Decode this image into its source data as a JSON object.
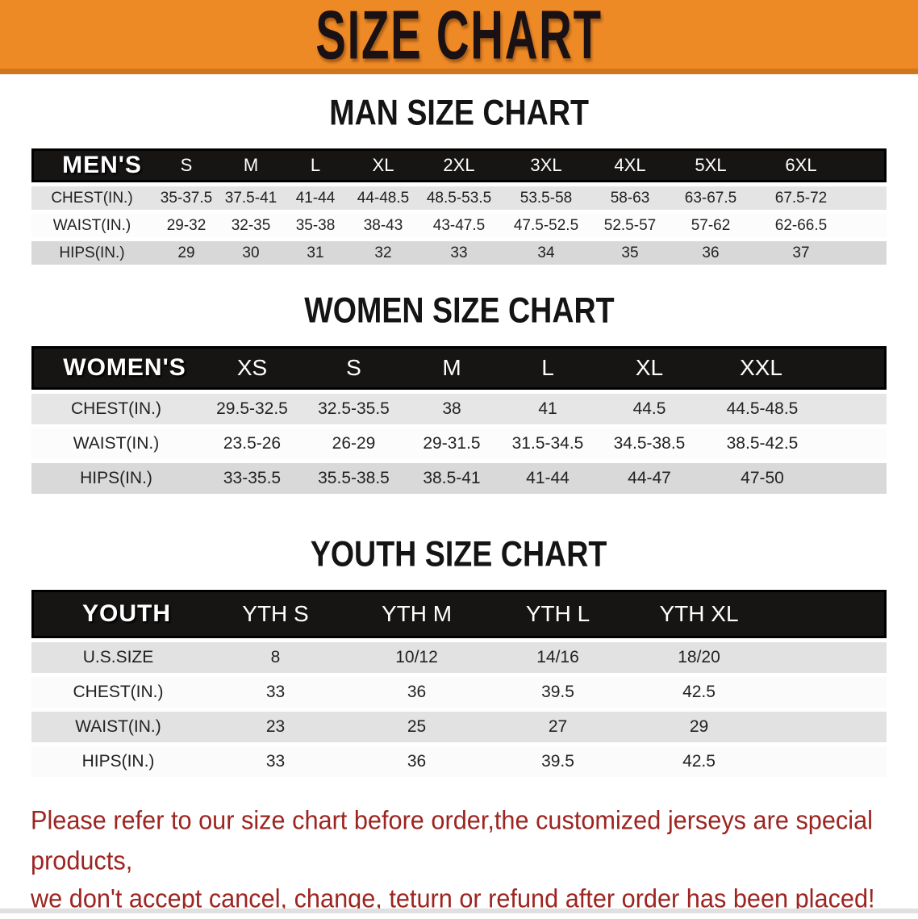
{
  "banner": {
    "title": "SIZE CHART",
    "bg_color": "#ee8a26",
    "text_color": "#191114"
  },
  "sections": [
    {
      "heading": "MAN SIZE CHART",
      "table": {
        "header_label": "MEN'S",
        "columns": [
          "S",
          "M",
          "L",
          "XL",
          "2XL",
          "3XL",
          "4XL",
          "5XL",
          "6XL"
        ],
        "rows": [
          {
            "label": "CHEST(IN.)",
            "values": [
              "35-37.5",
              "37.5-41",
              "41-44",
              "44-48.5",
              "48.5-53.5",
              "53.5-58",
              "58-63",
              "63-67.5",
              "67.5-72"
            ]
          },
          {
            "label": "WAIST(IN.)",
            "values": [
              "29-32",
              "32-35",
              "35-38",
              "38-43",
              "43-47.5",
              "47.5-52.5",
              "52.5-57",
              "57-62",
              "62-66.5"
            ]
          },
          {
            "label": "HIPS(IN.)",
            "values": [
              "29",
              "30",
              "31",
              "32",
              "33",
              "34",
              "35",
              "36",
              "37"
            ]
          }
        ]
      }
    },
    {
      "heading": "WOMEN SIZE CHART",
      "table": {
        "header_label": "WOMEN'S",
        "columns": [
          "XS",
          "S",
          "M",
          "L",
          "XL",
          "XXL"
        ],
        "rows": [
          {
            "label": "CHEST(IN.)",
            "values": [
              "29.5-32.5",
              "32.5-35.5",
              "38",
              "41",
              "44.5",
              "44.5-48.5"
            ]
          },
          {
            "label": "WAIST(IN.)",
            "values": [
              "23.5-26",
              "26-29",
              "29-31.5",
              "31.5-34.5",
              "34.5-38.5",
              "38.5-42.5"
            ]
          },
          {
            "label": "HIPS(IN.)",
            "values": [
              "33-35.5",
              "35.5-38.5",
              "38.5-41",
              "41-44",
              "44-47",
              "47-50"
            ]
          }
        ]
      }
    },
    {
      "heading": "YOUTH SIZE CHART",
      "table": {
        "header_label": "YOUTH",
        "columns": [
          "YTH S",
          "YTH M",
          "YTH L",
          "YTH XL"
        ],
        "rows": [
          {
            "label": "U.S.SIZE",
            "values": [
              "8",
              "10/12",
              "14/16",
              "18/20"
            ]
          },
          {
            "label": "CHEST(IN.)",
            "values": [
              "33",
              "36",
              "39.5",
              "42.5"
            ]
          },
          {
            "label": "WAIST(IN.)",
            "values": [
              "23",
              "25",
              "27",
              "29"
            ]
          },
          {
            "label": "HIPS(IN.)",
            "values": [
              "33",
              "36",
              "39.5",
              "42.5"
            ]
          }
        ]
      }
    }
  ],
  "disclaimer": {
    "line1": "Please refer to our size chart before order,the customized jerseys are special products,",
    "line2": "we don't accept cancel, change, teturn or refund after order has been placed!",
    "text_color": "#9c2521"
  }
}
